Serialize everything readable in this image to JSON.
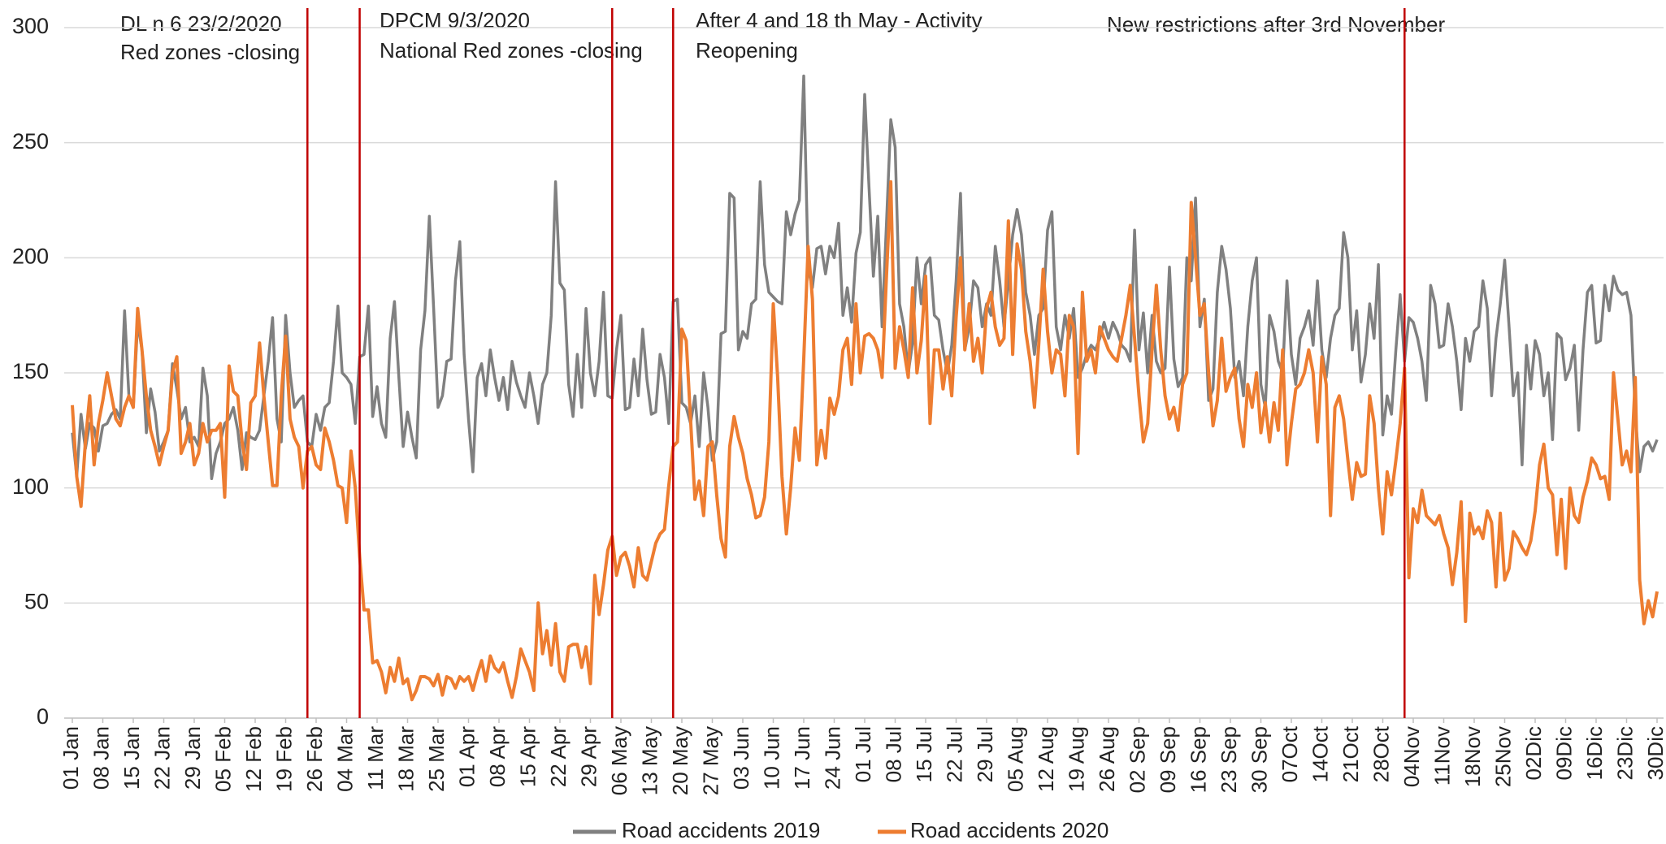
{
  "chart_data": {
    "type": "line",
    "categories": [
      "01 Jan",
      null,
      null,
      null,
      null,
      null,
      null,
      "08 Jan",
      null,
      null,
      null,
      null,
      null,
      null,
      "15 Jan",
      null,
      null,
      null,
      null,
      null,
      null,
      "22 Jan",
      null,
      null,
      null,
      null,
      null,
      null,
      "29 Jan",
      null,
      null,
      null,
      null,
      null,
      null,
      "05 Feb",
      null,
      null,
      null,
      null,
      null,
      null,
      "12 Feb",
      null,
      null,
      null,
      null,
      null,
      null,
      "19 Feb",
      null,
      null,
      null,
      null,
      null,
      null,
      "26 Feb",
      null,
      null,
      null,
      null,
      null,
      null,
      "04 Mar",
      null,
      null,
      null,
      null,
      null,
      null,
      "11 Mar",
      null,
      null,
      null,
      null,
      null,
      null,
      "18 Mar",
      null,
      null,
      null,
      null,
      null,
      null,
      "25 Mar",
      null,
      null,
      null,
      null,
      null,
      null,
      "01 Apr",
      null,
      null,
      null,
      null,
      null,
      null,
      "08 Apr",
      null,
      null,
      null,
      null,
      null,
      null,
      "15 Apr",
      null,
      null,
      null,
      null,
      null,
      null,
      "22 Apr",
      null,
      null,
      null,
      null,
      null,
      null,
      "29 Apr",
      null,
      null,
      null,
      null,
      null,
      null,
      "06 May",
      null,
      null,
      null,
      null,
      null,
      null,
      "13 May",
      null,
      null,
      null,
      null,
      null,
      null,
      "20 May",
      null,
      null,
      null,
      null,
      null,
      null,
      "27 May",
      null,
      null,
      null,
      null,
      null,
      null,
      "03 Jun",
      null,
      null,
      null,
      null,
      null,
      null,
      "10 Jun",
      null,
      null,
      null,
      null,
      null,
      null,
      "17 Jun",
      null,
      null,
      null,
      null,
      null,
      null,
      "24 Jun",
      null,
      null,
      null,
      null,
      null,
      null,
      "01 Jul",
      null,
      null,
      null,
      null,
      null,
      null,
      "08 Jul",
      null,
      null,
      null,
      null,
      null,
      null,
      "15 Jul",
      null,
      null,
      null,
      null,
      null,
      null,
      "22 Jul",
      null,
      null,
      null,
      null,
      null,
      null,
      "29 Jul",
      null,
      null,
      null,
      null,
      null,
      null,
      "05 Aug",
      null,
      null,
      null,
      null,
      null,
      null,
      "12 Aug",
      null,
      null,
      null,
      null,
      null,
      null,
      "19 Aug",
      null,
      null,
      null,
      null,
      null,
      null,
      "26 Aug",
      null,
      null,
      null,
      null,
      null,
      null,
      "02 Sep",
      null,
      null,
      null,
      null,
      null,
      null,
      "09 Sep",
      null,
      null,
      null,
      null,
      null,
      null,
      "16 Sep",
      null,
      null,
      null,
      null,
      null,
      null,
      "23 Sep",
      null,
      null,
      null,
      null,
      null,
      null,
      "30 Sep",
      null,
      null,
      null,
      null,
      null,
      null,
      "07Oct",
      null,
      null,
      null,
      null,
      null,
      null,
      "14Oct",
      null,
      null,
      null,
      null,
      null,
      null,
      "21Oct",
      null,
      null,
      null,
      null,
      null,
      null,
      "28Oct",
      null,
      null,
      null,
      null,
      null,
      null,
      "04Nov",
      null,
      null,
      null,
      null,
      null,
      null,
      "11Nov",
      null,
      null,
      null,
      null,
      null,
      null,
      "18Nov",
      null,
      null,
      null,
      null,
      null,
      null,
      "25Nov",
      null,
      null,
      null,
      null,
      null,
      null,
      "02Dic",
      null,
      null,
      null,
      null,
      null,
      null,
      "09Dic",
      null,
      null,
      null,
      null,
      null,
      null,
      "16Dic",
      null,
      null,
      null,
      null,
      null,
      null,
      "23Dic",
      null,
      null,
      null,
      null,
      null,
      null,
      "30Dic"
    ],
    "series": [
      {
        "name": "Road accidents 2019",
        "color": "#808080",
        "values": [
          124,
          105,
          132,
          117,
          128,
          126,
          116,
          127,
          128,
          132,
          134,
          130,
          177,
          140,
          135,
          172,
          160,
          124,
          143,
          133,
          116,
          120,
          125,
          154,
          143,
          130,
          135,
          120,
          122,
          118,
          152,
          140,
          104,
          115,
          120,
          128,
          130,
          135,
          125,
          108,
          124,
          122,
          121,
          125,
          140,
          155,
          174,
          130,
          120,
          175,
          150,
          135,
          138,
          140,
          120,
          118,
          132,
          125,
          135,
          137,
          155,
          179,
          150,
          148,
          145,
          128,
          157,
          158,
          179,
          131,
          144,
          128,
          122,
          165,
          181,
          148,
          118,
          133,
          122,
          113,
          160,
          177,
          218,
          178,
          135,
          140,
          155,
          156,
          190,
          207,
          158,
          130,
          107,
          148,
          154,
          140,
          160,
          148,
          138,
          148,
          134,
          155,
          146,
          140,
          135,
          150,
          140,
          128,
          145,
          150,
          175,
          233,
          189,
          186,
          145,
          131,
          158,
          135,
          178,
          150,
          140,
          155,
          185,
          140,
          139,
          160,
          175,
          134,
          135,
          156,
          140,
          169,
          147,
          132,
          133,
          158,
          148,
          128,
          181,
          182,
          137,
          135,
          128,
          140,
          118,
          150,
          135,
          112,
          120,
          167,
          168,
          228,
          226,
          160,
          168,
          165,
          180,
          182,
          233,
          197,
          185,
          183,
          181,
          180,
          220,
          210,
          219,
          225,
          279,
          195,
          187,
          204,
          205,
          193,
          205,
          200,
          215,
          175,
          187,
          172,
          202,
          211,
          271,
          230,
          192,
          218,
          170,
          215,
          260,
          248,
          180,
          170,
          150,
          163,
          200,
          180,
          197,
          200,
          175,
          173,
          160,
          150,
          162,
          190,
          228,
          160,
          170,
          190,
          187,
          170,
          180,
          175,
          205,
          190,
          170,
          190,
          210,
          221,
          210,
          185,
          175,
          158,
          175,
          178,
          212,
          220,
          170,
          160,
          175,
          165,
          178,
          148,
          152,
          158,
          162,
          160,
          165,
          172,
          165,
          172,
          168,
          162,
          160,
          155,
          212,
          160,
          176,
          150,
          175,
          155,
          150,
          152,
          196,
          156,
          144,
          148,
          200,
          190,
          226,
          170,
          182,
          138,
          143,
          185,
          205,
          195,
          178,
          148,
          155,
          140,
          170,
          190,
          200,
          145,
          135,
          175,
          168,
          155,
          150,
          190,
          158,
          145,
          165,
          170,
          177,
          162,
          190,
          160,
          148,
          165,
          175,
          178,
          211,
          200,
          160,
          177,
          146,
          158,
          180,
          165,
          197,
          123,
          140,
          132,
          160,
          184,
          155,
          174,
          172,
          165,
          155,
          138,
          188,
          180,
          161,
          162,
          180,
          170,
          155,
          134,
          165,
          155,
          168,
          170,
          190,
          178,
          140,
          165,
          180,
          199,
          170,
          140,
          150,
          110,
          162,
          143,
          164,
          158,
          140,
          150,
          121,
          167,
          165,
          147,
          152,
          162,
          125,
          160,
          185,
          188,
          163,
          164,
          188,
          177,
          192,
          186,
          184,
          185,
          175,
          132,
          107,
          118,
          120,
          116,
          121
        ]
      },
      {
        "name": "Road accidents 2020",
        "color": "#ed7d31",
        "values": [
          136,
          105,
          92,
          120,
          140,
          110,
          128,
          138,
          150,
          140,
          130,
          127,
          135,
          140,
          135,
          178,
          160,
          140,
          125,
          118,
          110,
          118,
          125,
          150,
          157,
          115,
          120,
          128,
          110,
          115,
          128,
          120,
          125,
          125,
          128,
          96,
          153,
          142,
          140,
          120,
          108,
          137,
          140,
          163,
          140,
          120,
          101,
          101,
          140,
          166,
          130,
          122,
          118,
          100,
          116,
          118,
          110,
          108,
          126,
          120,
          112,
          101,
          100,
          85,
          116,
          100,
          70,
          47,
          47,
          24,
          25,
          20,
          11,
          22,
          16,
          26,
          15,
          17,
          8,
          12,
          18,
          18,
          17,
          14,
          19,
          10,
          18,
          17,
          13,
          18,
          16,
          18,
          12,
          19,
          25,
          16,
          27,
          22,
          20,
          24,
          16,
          9,
          18,
          30,
          25,
          20,
          12,
          50,
          28,
          38,
          23,
          41,
          20,
          16,
          31,
          32,
          32,
          22,
          31,
          15,
          62,
          45,
          58,
          73,
          79,
          62,
          70,
          72,
          66,
          57,
          74,
          62,
          60,
          68,
          76,
          80,
          82,
          101,
          118,
          120,
          169,
          164,
          130,
          95,
          103,
          88,
          118,
          120,
          97,
          78,
          70,
          118,
          131,
          122,
          115,
          104,
          97,
          87,
          88,
          96,
          120,
          180,
          148,
          105,
          80,
          100,
          126,
          112,
          156,
          205,
          182,
          110,
          125,
          113,
          139,
          132,
          140,
          160,
          165,
          145,
          180,
          150,
          166,
          167,
          165,
          160,
          148,
          192,
          233,
          152,
          170,
          160,
          148,
          187,
          150,
          164,
          192,
          128,
          160,
          160,
          143,
          157,
          140,
          174,
          200,
          160,
          180,
          155,
          165,
          150,
          178,
          185,
          170,
          162,
          165,
          216,
          158,
          206,
          195,
          168,
          155,
          135,
          163,
          195,
          168,
          150,
          160,
          158,
          140,
          175,
          170,
          115,
          185,
          155,
          160,
          150,
          170,
          165,
          160,
          157,
          155,
          165,
          175,
          188,
          165,
          140,
          120,
          128,
          160,
          188,
          160,
          140,
          130,
          135,
          125,
          145,
          150,
          224,
          200,
          175,
          180,
          150,
          127,
          138,
          165,
          142,
          148,
          152,
          130,
          118,
          145,
          135,
          150,
          124,
          137,
          120,
          137,
          125,
          160,
          110,
          128,
          143,
          145,
          150,
          160,
          150,
          120,
          157,
          145,
          88,
          135,
          140,
          130,
          112,
          95,
          111,
          105,
          106,
          140,
          128,
          100,
          80,
          107,
          97,
          112,
          128,
          152,
          61,
          91,
          85,
          99,
          88,
          86,
          84,
          88,
          80,
          74,
          58,
          72,
          94,
          42,
          89,
          80,
          83,
          78,
          90,
          85,
          57,
          89,
          60,
          65,
          81,
          78,
          74,
          71,
          77,
          90,
          110,
          119,
          100,
          97,
          71,
          95,
          65,
          100,
          88,
          85,
          96,
          103,
          113,
          110,
          104,
          105,
          95,
          150,
          130,
          110,
          116,
          107,
          148,
          60,
          41,
          51,
          44,
          55
        ]
      }
    ],
    "ylim": [
      0,
      300
    ],
    "yticks": [
      0,
      50,
      100,
      150,
      200,
      250,
      300
    ],
    "grid": true,
    "legend": "bottom",
    "annotations": [
      {
        "lines": [
          "DL n 6 23/2/2020",
          "Red zones -closing"
        ],
        "at": 54
      },
      {
        "lines": [
          "DPCM 9/3/2020",
          "National Red zones -closing"
        ],
        "at": 66
      },
      {
        "lines": [
          "After 4 and 18 th May - Activity",
          "Reopening"
        ],
        "at": 124
      },
      {
        "lines": [],
        "at": 138
      },
      {
        "lines": [
          "New restrictions after 3rd November"
        ],
        "at": 306
      }
    ],
    "annotation_color": "#c00000"
  }
}
